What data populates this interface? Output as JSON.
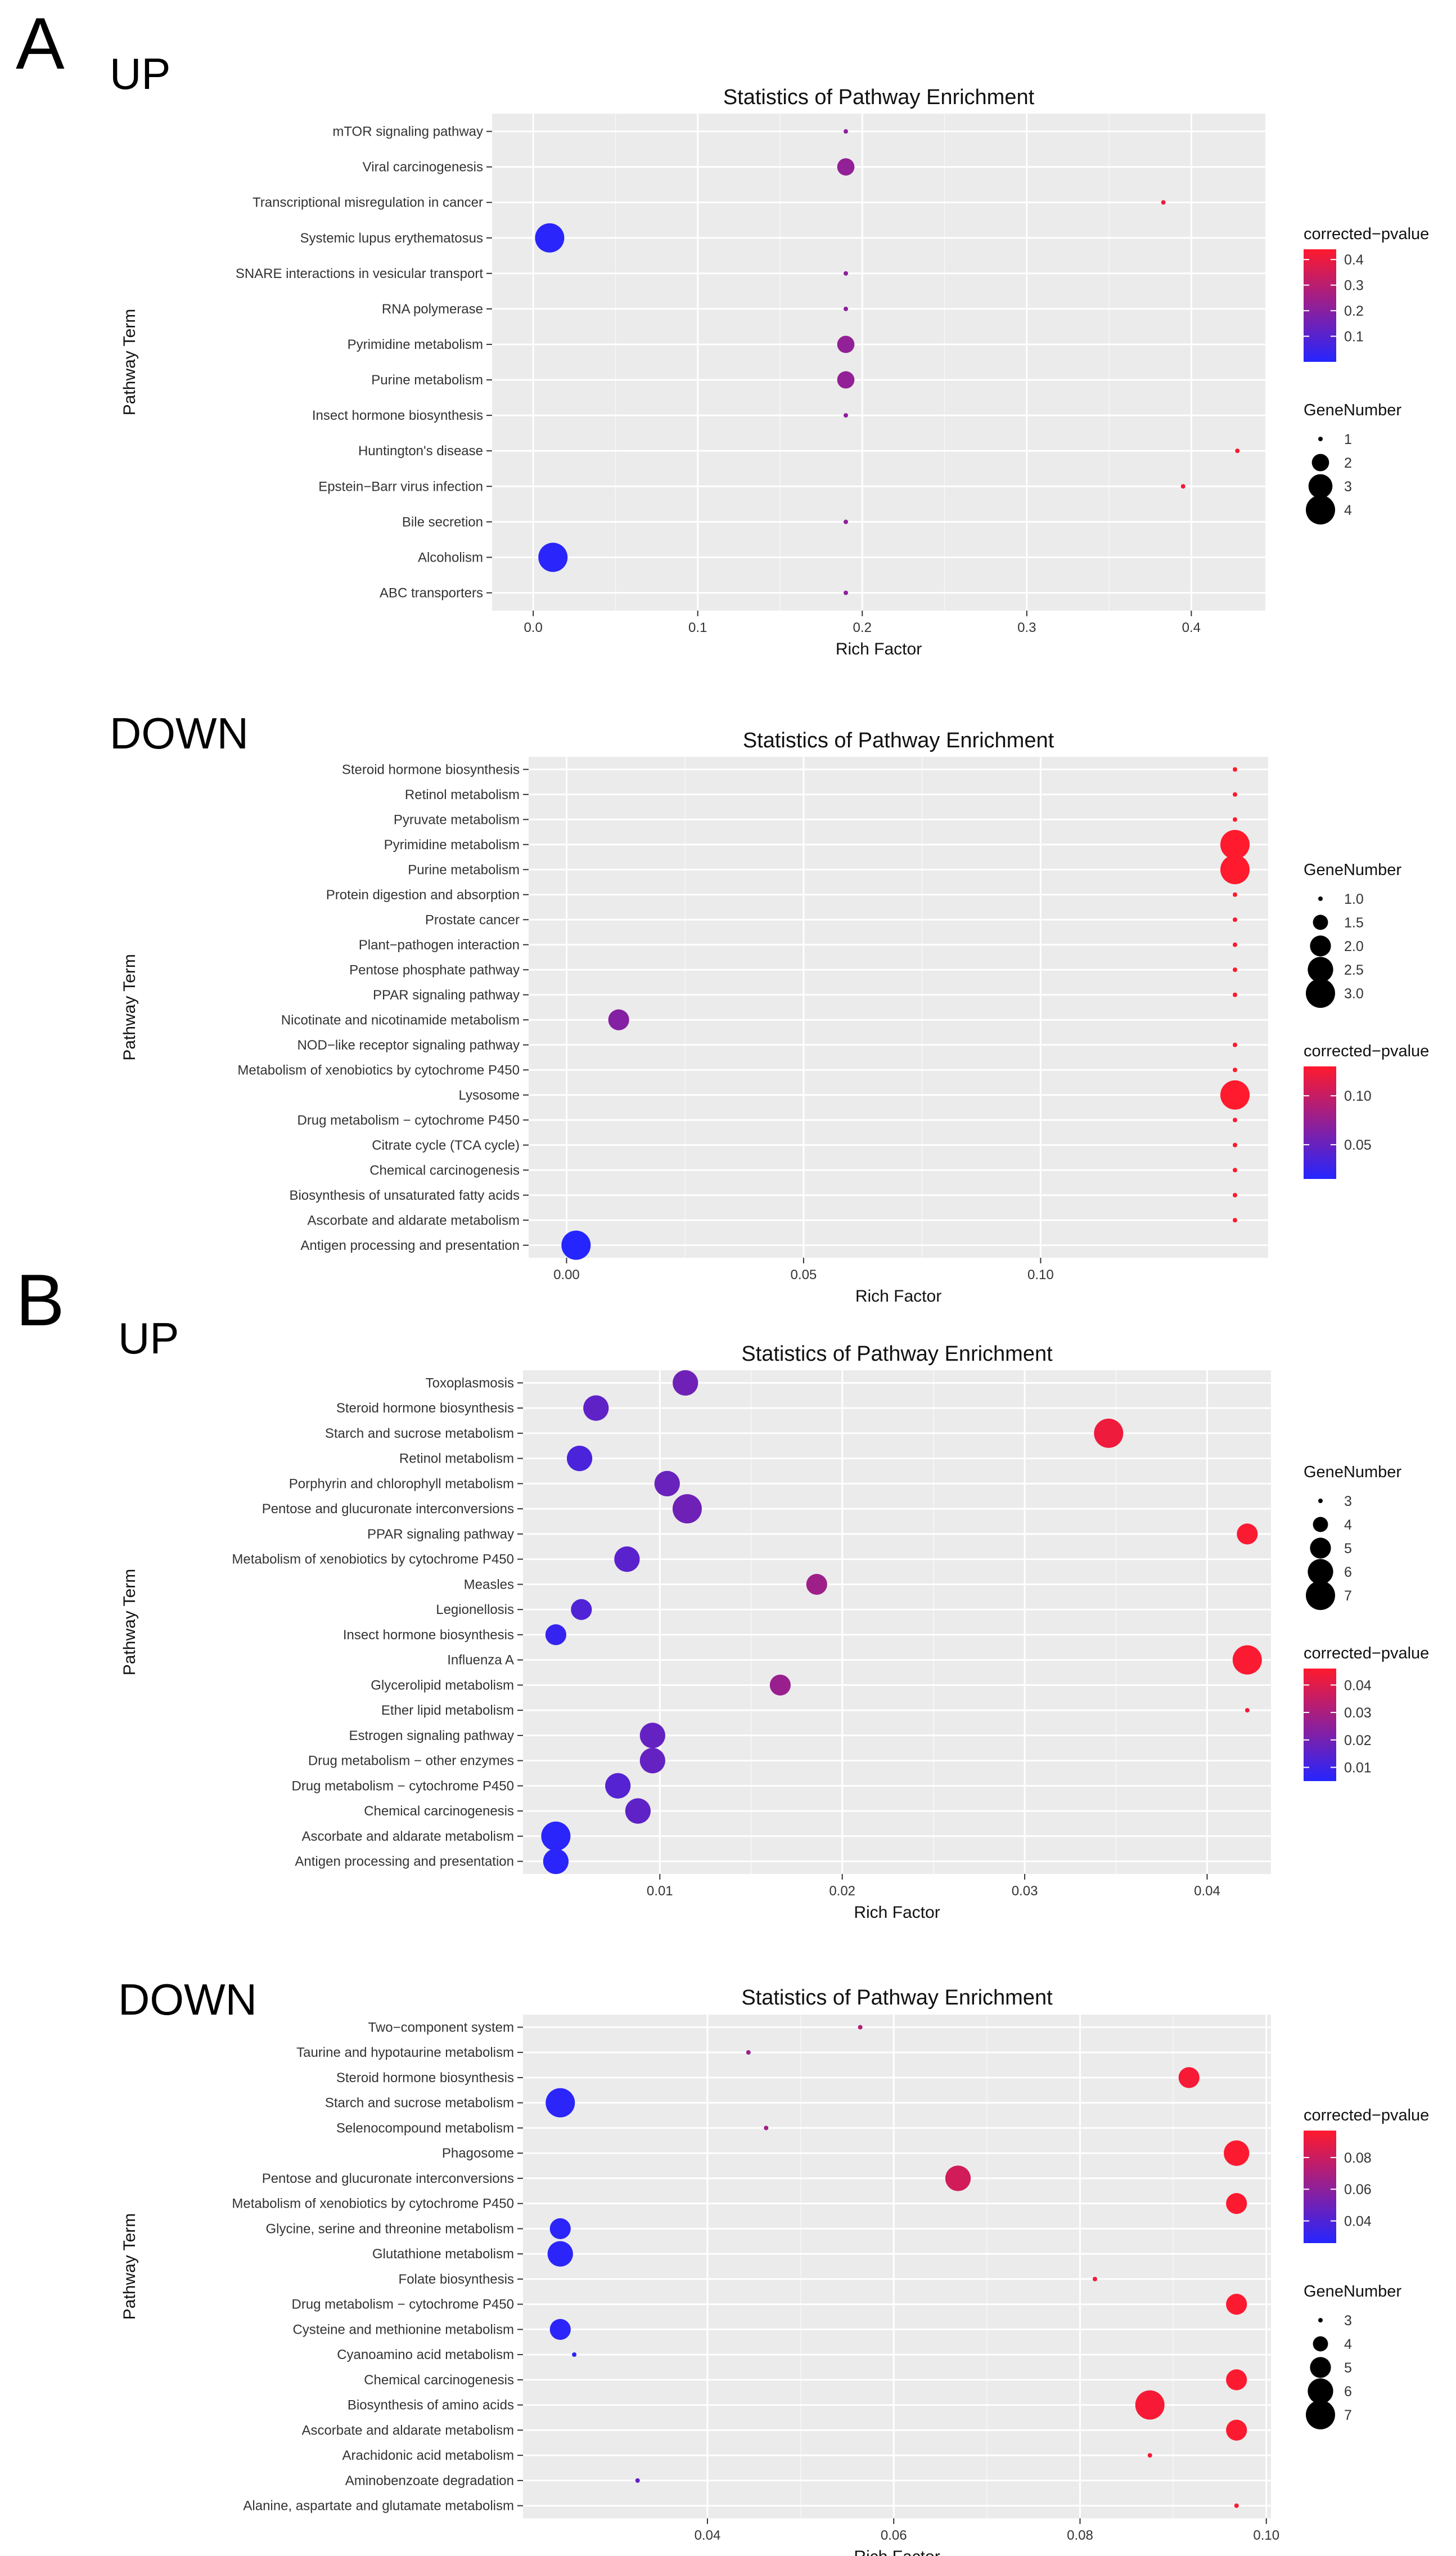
{
  "figure": {
    "labels": {
      "A": "A",
      "B": "B",
      "up": "UP",
      "down": "DOWN"
    }
  },
  "colors": {
    "low": "#2525ff",
    "high": "#ff1a2d",
    "panel": "#ebebeb",
    "grid": "#ffffff"
  },
  "legend_titles": {
    "pvalue": "corrected−pvalue",
    "gene": "GeneNumber"
  },
  "chart_data": [
    {
      "id": "A-UP",
      "type": "scatter",
      "title": "Statistics of Pathway Enrichment",
      "xlabel": "Rich Factor",
      "ylabel": "Pathway Term",
      "xlim": [
        -0.025,
        0.445
      ],
      "xticks": [
        0.0,
        0.1,
        0.2,
        0.3,
        0.4
      ],
      "xtick_labels": [
        "0.0",
        "0.1",
        "0.2",
        "0.3",
        "0.4"
      ],
      "categories": [
        "mTOR signaling pathway",
        "Viral carcinogenesis",
        "Transcriptional misregulation in cancer",
        "Systemic lupus erythematosus",
        "SNARE interactions in vesicular transport",
        "RNA polymerase",
        "Pyrimidine metabolism",
        "Purine metabolism",
        "Insect hormone biosynthesis",
        "Huntington's disease",
        "Epstein−Barr virus infection",
        "Bile secretion",
        "Alcoholism",
        "ABC transporters"
      ],
      "x": [
        0.19,
        0.19,
        0.383,
        0.01,
        0.19,
        0.19,
        0.19,
        0.19,
        0.19,
        0.428,
        0.395,
        0.19,
        0.012,
        0.19
      ],
      "gene_number": [
        1,
        2,
        1,
        4,
        1,
        1,
        2,
        2,
        1,
        1,
        1,
        1,
        4,
        1
      ],
      "pvalue": [
        0.21,
        0.22,
        0.41,
        0.01,
        0.21,
        0.21,
        0.22,
        0.22,
        0.21,
        0.43,
        0.42,
        0.21,
        0.01,
        0.21
      ],
      "color_range": [
        0.0,
        0.44
      ],
      "color_legend": {
        "ticks": [
          0.4,
          0.3,
          0.2,
          0.1
        ],
        "labels": [
          "0.4",
          "0.3",
          "0.2",
          "0.1"
        ]
      },
      "size_legend": {
        "values": [
          1,
          2,
          3,
          4
        ],
        "labels": [
          "1",
          "2",
          "3",
          "4"
        ]
      },
      "size_range": [
        1,
        4
      ],
      "legend_order": [
        "color",
        "size"
      ]
    },
    {
      "id": "A-DOWN",
      "type": "scatter",
      "title": "Statistics of Pathway Enrichment",
      "xlabel": "Rich Factor",
      "ylabel": "Pathway Term",
      "xlim": [
        -0.008,
        0.148
      ],
      "xticks": [
        0.0,
        0.05,
        0.1
      ],
      "xtick_labels": [
        "0.00",
        "0.05",
        "0.10"
      ],
      "categories": [
        "Steroid hormone biosynthesis",
        "Retinol metabolism",
        "Pyruvate metabolism",
        "Pyrimidine metabolism",
        "Purine metabolism",
        "Protein digestion and absorption",
        "Prostate cancer",
        "Plant−pathogen interaction",
        "Pentose phosphate pathway",
        "PPAR signaling pathway",
        "Nicotinate and nicotinamide metabolism",
        "NOD−like receptor signaling pathway",
        "Metabolism of xenobiotics by cytochrome P450",
        "Lysosome",
        "Drug metabolism − cytochrome P450",
        "Citrate cycle (TCA cycle)",
        "Chemical carcinogenesis",
        "Biosynthesis of unsaturated fatty acids",
        "Ascorbate and aldarate metabolism",
        "Antigen processing and presentation"
      ],
      "x": [
        0.141,
        0.141,
        0.141,
        0.141,
        0.141,
        0.141,
        0.141,
        0.141,
        0.141,
        0.141,
        0.011,
        0.141,
        0.141,
        0.141,
        0.141,
        0.141,
        0.141,
        0.141,
        0.141,
        0.002
      ],
      "gene_number": [
        1,
        1,
        1,
        3,
        3,
        1,
        1,
        1,
        1,
        1,
        2,
        1,
        1,
        3,
        1,
        1,
        1,
        1,
        1,
        3
      ],
      "pvalue": [
        0.13,
        0.13,
        0.13,
        0.13,
        0.13,
        0.13,
        0.13,
        0.13,
        0.13,
        0.13,
        0.065,
        0.13,
        0.13,
        0.13,
        0.13,
        0.13,
        0.13,
        0.13,
        0.13,
        0.015
      ],
      "color_range": [
        0.015,
        0.13
      ],
      "color_legend": {
        "ticks": [
          0.1,
          0.05
        ],
        "labels": [
          "0.10",
          "0.05"
        ]
      },
      "size_legend": {
        "values": [
          1.0,
          1.5,
          2.0,
          2.5,
          3.0
        ],
        "labels": [
          "1.0",
          "1.5",
          "2.0",
          "2.5",
          "3.0"
        ]
      },
      "size_range": [
        1,
        3
      ],
      "legend_order": [
        "size",
        "color"
      ]
    },
    {
      "id": "B-UP",
      "type": "scatter",
      "title": "Statistics of Pathway Enrichment",
      "xlabel": "Rich Factor",
      "ylabel": "Pathway Term",
      "xlim": [
        0.0025,
        0.0435
      ],
      "xticks": [
        0.01,
        0.02,
        0.03,
        0.04
      ],
      "xtick_labels": [
        "0.01",
        "0.02",
        "0.03",
        "0.04"
      ],
      "categories": [
        "Toxoplasmosis",
        "Steroid hormone biosynthesis",
        "Starch and sucrose metabolism",
        "Retinol metabolism",
        "Porphyrin and chlorophyll metabolism",
        "Pentose and glucuronate interconversions",
        "PPAR signaling pathway",
        "Metabolism of xenobiotics by cytochrome P450",
        "Measles",
        "Legionellosis",
        "Insect hormone biosynthesis",
        "Influenza A",
        "Glycerolipid metabolism",
        "Ether lipid metabolism",
        "Estrogen signaling pathway",
        "Drug metabolism − other enzymes",
        "Drug metabolism − cytochrome P450",
        "Chemical carcinogenesis",
        "Ascorbate and aldarate metabolism",
        "Antigen processing and presentation"
      ],
      "x": [
        0.0114,
        0.0065,
        0.0346,
        0.0056,
        0.0104,
        0.0115,
        0.0422,
        0.0082,
        0.0186,
        0.0057,
        0.0043,
        0.0422,
        0.0166,
        0.0422,
        0.0096,
        0.0096,
        0.0077,
        0.0088,
        0.0043,
        0.0043
      ],
      "gene_number": [
        6,
        6,
        7,
        6,
        6,
        7,
        5,
        6,
        5,
        5,
        5,
        7,
        5,
        3,
        6,
        6,
        6,
        6,
        7,
        6
      ],
      "pvalue": [
        0.019,
        0.016,
        0.043,
        0.012,
        0.018,
        0.019,
        0.045,
        0.015,
        0.028,
        0.013,
        0.008,
        0.045,
        0.027,
        0.044,
        0.017,
        0.017,
        0.014,
        0.016,
        0.006,
        0.006
      ],
      "color_range": [
        0.005,
        0.046
      ],
      "color_legend": {
        "ticks": [
          0.04,
          0.03,
          0.02,
          0.01
        ],
        "labels": [
          "0.04",
          "0.03",
          "0.02",
          "0.01"
        ]
      },
      "size_legend": {
        "values": [
          3,
          4,
          5,
          6,
          7
        ],
        "labels": [
          "3",
          "4",
          "5",
          "6",
          "7"
        ]
      },
      "size_range": [
        3,
        7
      ],
      "legend_order": [
        "size",
        "color"
      ]
    },
    {
      "id": "B-DOWN",
      "type": "scatter",
      "title": "Statistics of Pathway Enrichment",
      "xlabel": "Rich Factor",
      "ylabel": "Pathway Term",
      "xlim": [
        0.0202,
        0.1005
      ],
      "xticks": [
        0.04,
        0.06,
        0.08,
        0.1
      ],
      "xtick_labels": [
        "0.04",
        "0.06",
        "0.08",
        "0.10"
      ],
      "categories": [
        "Two−component system",
        "Taurine and hypotaurine metabolism",
        "Steroid hormone biosynthesis",
        "Starch and sucrose metabolism",
        "Selenocompound metabolism",
        "Phagosome",
        "Pentose and glucuronate interconversions",
        "Metabolism of xenobiotics by cytochrome P450",
        "Glycine, serine and threonine metabolism",
        "Glutathione metabolism",
        "Folate biosynthesis",
        "Drug metabolism − cytochrome P450",
        "Cysteine and methionine metabolism",
        "Cyanoamino acid metabolism",
        "Chemical carcinogenesis",
        "Biosynthesis of amino acids",
        "Ascorbate and aldarate metabolism",
        "Arachidonic acid metabolism",
        "Aminobenzoate degradation",
        "Alanine, aspartate and glutamate metabolism"
      ],
      "x": [
        0.0564,
        0.0444,
        0.0917,
        0.0242,
        0.0463,
        0.0968,
        0.0669,
        0.0968,
        0.0242,
        0.0242,
        0.0816,
        0.0968,
        0.0242,
        0.0257,
        0.0968,
        0.0875,
        0.0968,
        0.0875,
        0.0325,
        0.0968
      ],
      "gene_number": [
        3,
        3,
        5,
        7,
        3,
        6,
        6,
        5,
        5,
        6,
        3,
        5,
        5,
        3,
        5,
        7,
        5,
        3,
        3,
        3
      ],
      "pvalue": [
        0.072,
        0.064,
        0.094,
        0.028,
        0.066,
        0.096,
        0.082,
        0.096,
        0.028,
        0.028,
        0.093,
        0.096,
        0.028,
        0.029,
        0.096,
        0.094,
        0.096,
        0.094,
        0.045,
        0.096
      ],
      "color_range": [
        0.026,
        0.097
      ],
      "color_legend": {
        "ticks": [
          0.08,
          0.06,
          0.04
        ],
        "labels": [
          "0.08",
          "0.06",
          "0.04"
        ]
      },
      "size_legend": {
        "values": [
          3,
          4,
          5,
          6,
          7
        ],
        "labels": [
          "3",
          "4",
          "5",
          "6",
          "7"
        ]
      },
      "size_range": [
        3,
        7
      ],
      "legend_order": [
        "color",
        "size"
      ]
    }
  ]
}
